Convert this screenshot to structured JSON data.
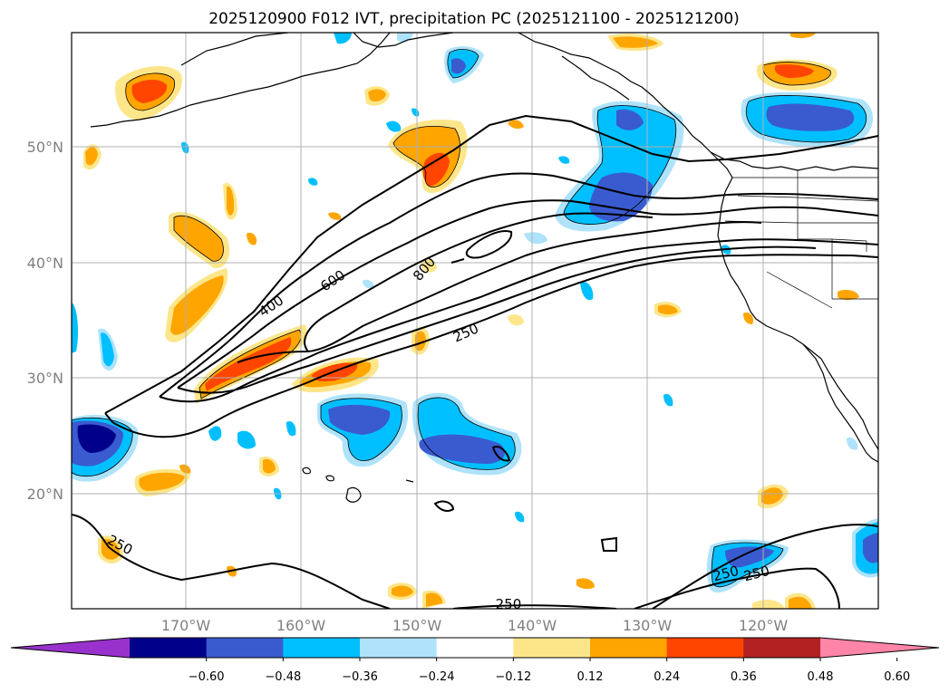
{
  "title": "2025120900 F012 IVT, precipitation PC (2025121100 - 2025121200)",
  "map": {
    "lat_labels": [
      "50°N",
      "40°N",
      "30°N",
      "20°N"
    ],
    "lon_labels": [
      "170°W",
      "160°W",
      "150°W",
      "140°W",
      "130°W",
      "120°W"
    ],
    "contour_labels": [
      "400",
      "600",
      "800",
      "250",
      "250",
      "250",
      "250",
      "250"
    ],
    "colors": {
      "coast": "#000000",
      "grid": "#b0b0b0",
      "contour": "#000000"
    }
  },
  "colorbar": {
    "ticks": [
      "−0.60",
      "−0.48",
      "−0.36",
      "−0.24",
      "−0.12",
      "0.12",
      "0.24",
      "0.36",
      "0.48",
      "0.60"
    ],
    "colors": [
      "#9932cc",
      "#00008b",
      "#3a5bd0",
      "#00bfff",
      "#aee3fb",
      "#ffffff",
      "#fde68a",
      "#ffa500",
      "#ff4500",
      "#b22222",
      "#ff85a8"
    ]
  }
}
